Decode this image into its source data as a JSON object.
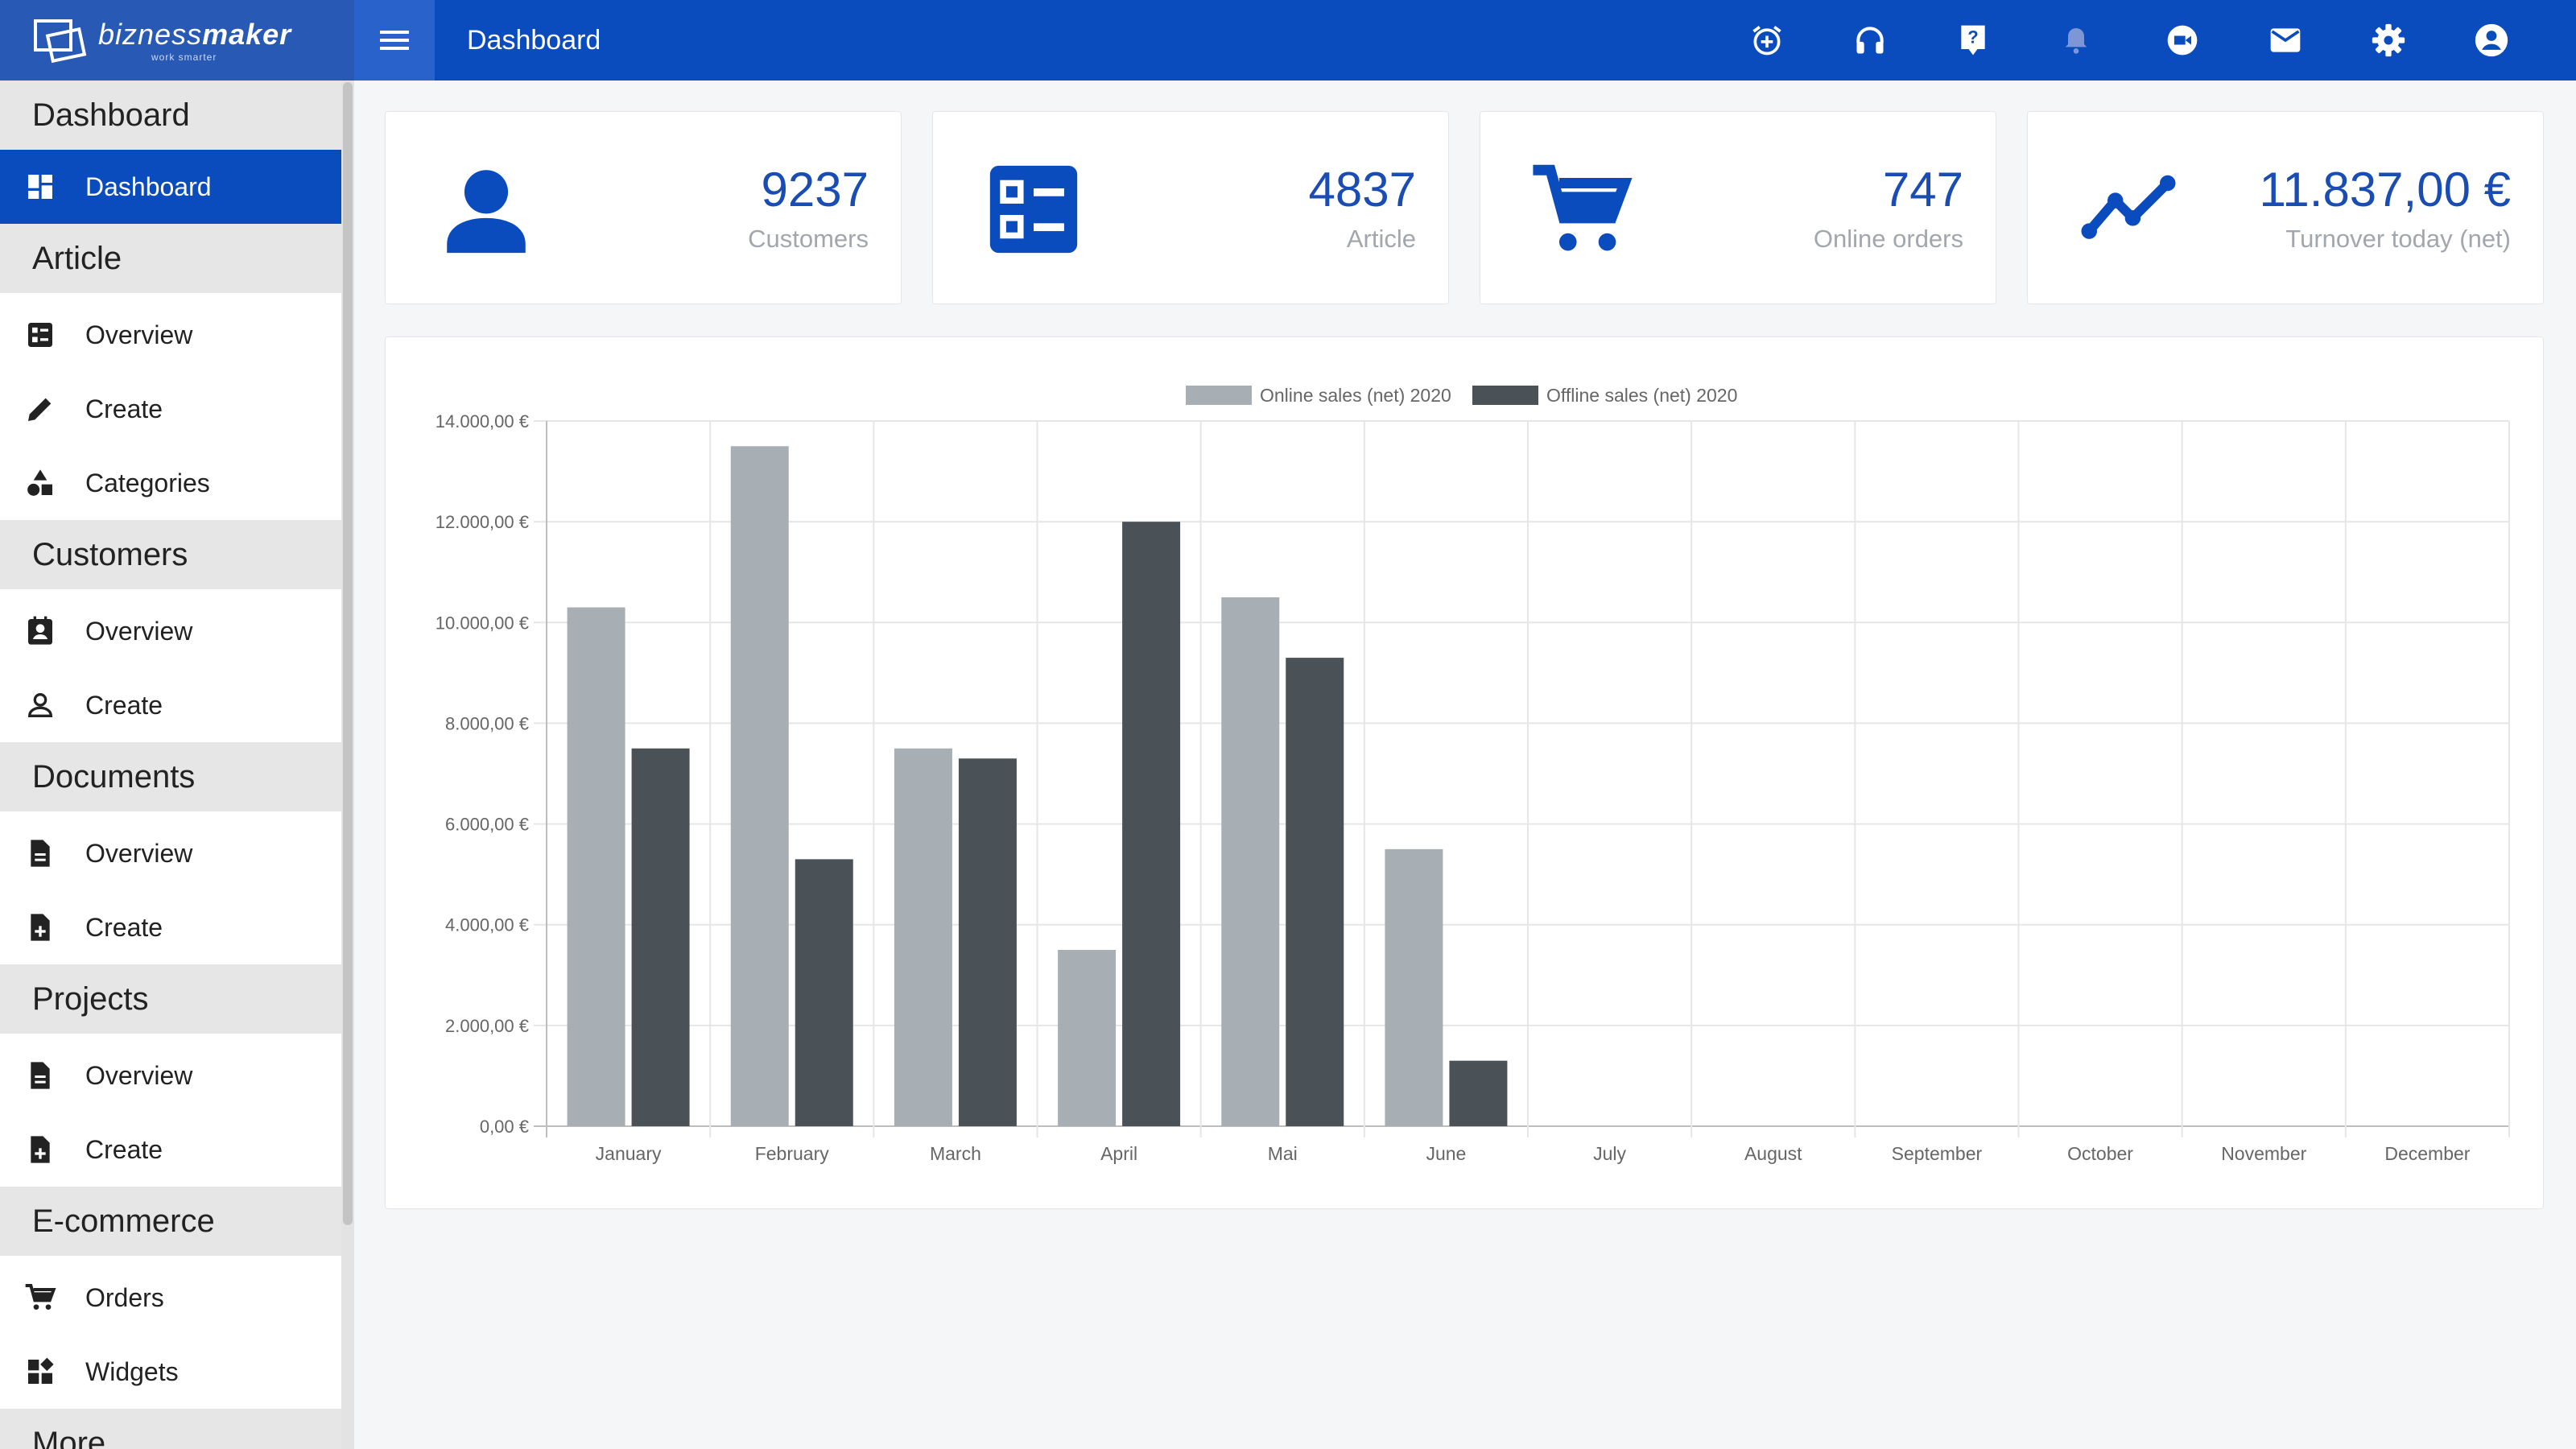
{
  "brand": {
    "name_light": "bizness",
    "name_bold": "maker",
    "tagline": "work smarter"
  },
  "header": {
    "title": "Dashboard",
    "icons": [
      "alarm-icon",
      "headset-icon",
      "help-icon",
      "bell-icon",
      "video-icon",
      "mail-icon",
      "settings-icon",
      "account-icon"
    ]
  },
  "sidebar": {
    "sections": [
      {
        "title": "Dashboard",
        "items": [
          {
            "label": "Dashboard",
            "icon": "dashboard-icon",
            "active": true
          }
        ]
      },
      {
        "title": "Article",
        "items": [
          {
            "label": "Overview",
            "icon": "list-icon"
          },
          {
            "label": "Create",
            "icon": "pencil-icon"
          },
          {
            "label": "Categories",
            "icon": "shapes-icon"
          }
        ]
      },
      {
        "title": "Customers",
        "items": [
          {
            "label": "Overview",
            "icon": "contact-card-icon"
          },
          {
            "label": "Create",
            "icon": "person-icon"
          }
        ]
      },
      {
        "title": "Documents",
        "items": [
          {
            "label": "Overview",
            "icon": "document-icon"
          },
          {
            "label": "Create",
            "icon": "document-add-icon"
          }
        ]
      },
      {
        "title": "Projects",
        "items": [
          {
            "label": "Overview",
            "icon": "document-icon"
          },
          {
            "label": "Create",
            "icon": "document-add-icon"
          }
        ]
      },
      {
        "title": "E-commerce",
        "items": [
          {
            "label": "Orders",
            "icon": "cart-icon"
          },
          {
            "label": "Widgets",
            "icon": "widgets-icon"
          }
        ]
      },
      {
        "title": "More",
        "items": []
      }
    ]
  },
  "stats": [
    {
      "value": "9237",
      "label": "Customers",
      "icon": "customer-icon"
    },
    {
      "value": "4837",
      "label": "Article",
      "icon": "article-list-icon"
    },
    {
      "value": "747",
      "label": "Online orders",
      "icon": "cart-icon"
    },
    {
      "value": "11.837,00 €",
      "label": "Turnover today (net)",
      "icon": "trend-icon"
    }
  ],
  "colors": {
    "primary": "#0a4bbd",
    "online": "#a7afb4",
    "offline": "#4b5257",
    "grid": "#e6e6e6"
  },
  "chart_data": {
    "type": "bar",
    "categories": [
      "January",
      "February",
      "March",
      "April",
      "Mai",
      "June",
      "July",
      "August",
      "September",
      "October",
      "November",
      "December"
    ],
    "series": [
      {
        "name": "Online sales (net) 2020",
        "values": [
          10300,
          13500,
          7500,
          3500,
          10500,
          5500,
          null,
          null,
          null,
          null,
          null,
          null
        ]
      },
      {
        "name": "Offline sales (net) 2020",
        "values": [
          7500,
          5300,
          7300,
          12000,
          9300,
          1300,
          null,
          null,
          null,
          null,
          null,
          null
        ]
      }
    ],
    "ylim": [
      0,
      14000
    ],
    "yticks": [
      "0,00 €",
      "2.000,00 €",
      "4.000,00 €",
      "6.000,00 €",
      "8.000,00 €",
      "10.000,00 €",
      "12.000,00 €",
      "14.000,00 €"
    ],
    "legend": "top",
    "grid": true
  }
}
